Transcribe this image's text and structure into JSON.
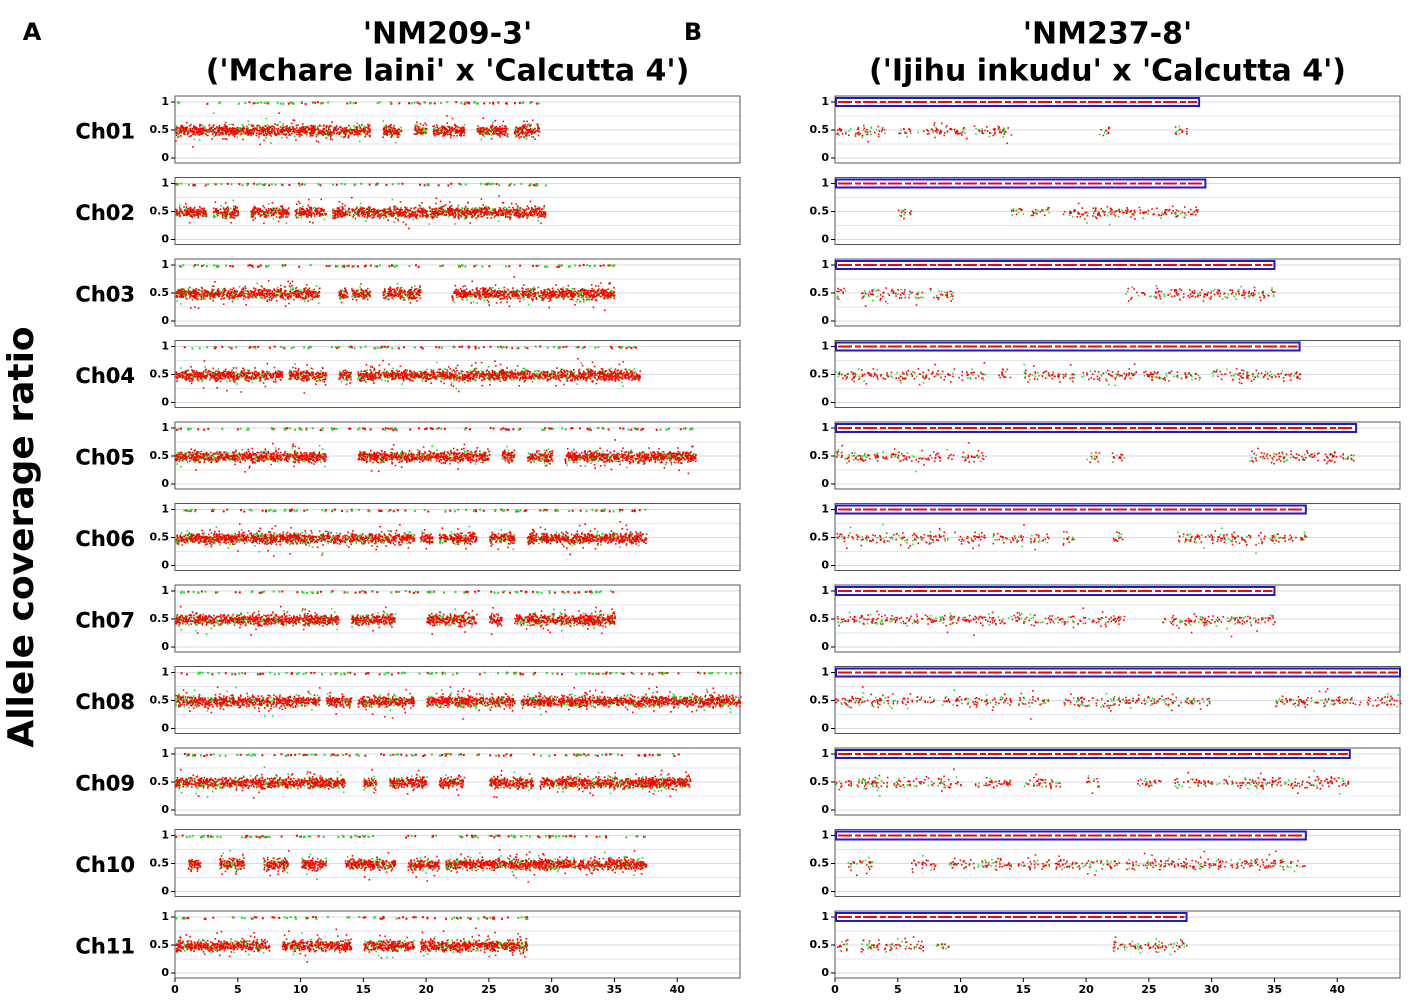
{
  "ylabel": "Allele coverage ratio",
  "chart_data": [
    {
      "type": "scatter",
      "label": "A",
      "title": "'NM209-3'",
      "subtitle": "('Mchare laini' x 'Calcutta 4')",
      "xlim": [
        0,
        45
      ],
      "xticks": [
        0,
        5,
        10,
        15,
        20,
        25,
        30,
        35,
        40
      ],
      "ylim": [
        0,
        1
      ],
      "yticks": [
        0,
        0.5,
        1
      ],
      "grid": true,
      "colors": [
        "#ff0000",
        "#22dd22"
      ],
      "chromosomes": [
        {
          "name": "Ch01",
          "length": 29,
          "segments": [
            [
              0,
              15.5
            ],
            [
              16.5,
              18
            ],
            [
              19,
              20
            ],
            [
              20.5,
              23
            ],
            [
              24,
              26.5
            ],
            [
              27,
              29
            ]
          ]
        },
        {
          "name": "Ch02",
          "length": 29.5,
          "segments": [
            [
              0,
              2.5
            ],
            [
              3,
              5
            ],
            [
              6,
              9
            ],
            [
              9.5,
              12
            ],
            [
              12.5,
              29.5
            ]
          ]
        },
        {
          "name": "Ch03",
          "length": 35,
          "segments": [
            [
              0,
              11.5
            ],
            [
              13,
              13.7
            ],
            [
              14,
              15.5
            ],
            [
              16.5,
              19.5
            ],
            [
              22,
              35
            ]
          ]
        },
        {
          "name": "Ch04",
          "length": 37,
          "segments": [
            [
              0,
              8.5
            ],
            [
              9,
              12
            ],
            [
              13,
              14
            ],
            [
              14.5,
              37
            ]
          ]
        },
        {
          "name": "Ch05",
          "length": 41.5,
          "segments": [
            [
              0,
              12
            ],
            [
              14.5,
              25
            ],
            [
              26,
              27
            ],
            [
              28,
              30
            ],
            [
              31,
              41.5
            ]
          ]
        },
        {
          "name": "Ch06",
          "length": 37.5,
          "segments": [
            [
              0,
              19
            ],
            [
              19.5,
              20.5
            ],
            [
              21,
              24
            ],
            [
              25,
              27
            ],
            [
              28,
              37.5
            ]
          ]
        },
        {
          "name": "Ch07",
          "length": 35,
          "segments": [
            [
              0,
              13
            ],
            [
              14,
              17.5
            ],
            [
              20,
              24
            ],
            [
              25,
              26
            ],
            [
              27,
              35
            ]
          ]
        },
        {
          "name": "Ch08",
          "length": 45,
          "segments": [
            [
              0,
              11.5
            ],
            [
              12,
              14
            ],
            [
              14.5,
              19
            ],
            [
              20,
              27
            ],
            [
              27.5,
              32
            ],
            [
              32,
              45
            ]
          ]
        },
        {
          "name": "Ch09",
          "length": 41,
          "segments": [
            [
              0,
              13.5
            ],
            [
              15,
              16
            ],
            [
              17,
              20
            ],
            [
              21,
              23
            ],
            [
              25,
              28.5
            ],
            [
              29,
              41
            ]
          ]
        },
        {
          "name": "Ch10",
          "length": 37.5,
          "segments": [
            [
              1,
              2
            ],
            [
              3.5,
              5.5
            ],
            [
              7,
              9
            ],
            [
              10,
              12
            ],
            [
              13.5,
              17.5
            ],
            [
              18.5,
              21
            ],
            [
              21.5,
              37.5
            ]
          ]
        },
        {
          "name": "Ch11",
          "length": 28,
          "segments": [
            [
              0,
              7.5
            ],
            [
              8.5,
              14
            ],
            [
              15,
              19
            ],
            [
              19.5,
              28
            ]
          ]
        }
      ]
    },
    {
      "type": "scatter",
      "label": "B",
      "title": "'NM237-8'",
      "subtitle": "('Ijihu inkudu' x 'Calcutta 4')",
      "xlim": [
        0,
        45
      ],
      "xticks": [
        0,
        5,
        10,
        15,
        20,
        25,
        30,
        35,
        40
      ],
      "ylim": [
        0,
        1
      ],
      "yticks": [
        0,
        0.5,
        1
      ],
      "grid": true,
      "colors": [
        "#ff0000",
        "#22dd22"
      ],
      "box_color": "#1a1ad0",
      "chromosomes": [
        {
          "name": "Ch01",
          "length": 29,
          "segments": [
            [
              0,
              4
            ],
            [
              5,
              6
            ],
            [
              6.5,
              10.5
            ],
            [
              11,
              14
            ],
            [
              21,
              22
            ],
            [
              27,
              28
            ]
          ]
        },
        {
          "name": "Ch02",
          "length": 29.5,
          "segments": [
            [
              5,
              6
            ],
            [
              14,
              15
            ],
            [
              15.5,
              17
            ],
            [
              18,
              21
            ],
            [
              21,
              29
            ]
          ]
        },
        {
          "name": "Ch03",
          "length": 35,
          "segments": [
            [
              0,
              1
            ],
            [
              2,
              7
            ],
            [
              7.5,
              9.5
            ],
            [
              23,
              35
            ]
          ]
        },
        {
          "name": "Ch04",
          "length": 37,
          "segments": [
            [
              0,
              12
            ],
            [
              13,
              14
            ],
            [
              15,
              19
            ],
            [
              19.5,
              24
            ],
            [
              24.5,
              29
            ],
            [
              30,
              37
            ]
          ]
        },
        {
          "name": "Ch05",
          "length": 41.5,
          "segments": [
            [
              0,
              9.5
            ],
            [
              10,
              12
            ],
            [
              20,
              21
            ],
            [
              22,
              23
            ],
            [
              33,
              41.5
            ]
          ]
        },
        {
          "name": "Ch06",
          "length": 37.5,
          "segments": [
            [
              0,
              9
            ],
            [
              9.5,
              12
            ],
            [
              12.5,
              15
            ],
            [
              15.5,
              17
            ],
            [
              18,
              19
            ],
            [
              22,
              23
            ],
            [
              27,
              37.5
            ]
          ]
        },
        {
          "name": "Ch07",
          "length": 35,
          "segments": [
            [
              0,
              23
            ],
            [
              26,
              35
            ]
          ]
        },
        {
          "name": "Ch08",
          "length": 45,
          "segments": [
            [
              0,
              8
            ],
            [
              8.5,
              14
            ],
            [
              14.5,
              17
            ],
            [
              18,
              22
            ],
            [
              22,
              30
            ],
            [
              35,
              45
            ]
          ]
        },
        {
          "name": "Ch09",
          "length": 41,
          "segments": [
            [
              0,
              10
            ],
            [
              11,
              14
            ],
            [
              15,
              18
            ],
            [
              20,
              21
            ],
            [
              24,
              26
            ],
            [
              27,
              41
            ]
          ]
        },
        {
          "name": "Ch10",
          "length": 37.5,
          "segments": [
            [
              1,
              3
            ],
            [
              6,
              8
            ],
            [
              9,
              14
            ],
            [
              14.5,
              17
            ],
            [
              17.5,
              23
            ],
            [
              23,
              37.5
            ]
          ]
        },
        {
          "name": "Ch11",
          "length": 28,
          "segments": [
            [
              0,
              1
            ],
            [
              2,
              7
            ],
            [
              8,
              9
            ],
            [
              22,
              28
            ]
          ]
        }
      ]
    }
  ]
}
